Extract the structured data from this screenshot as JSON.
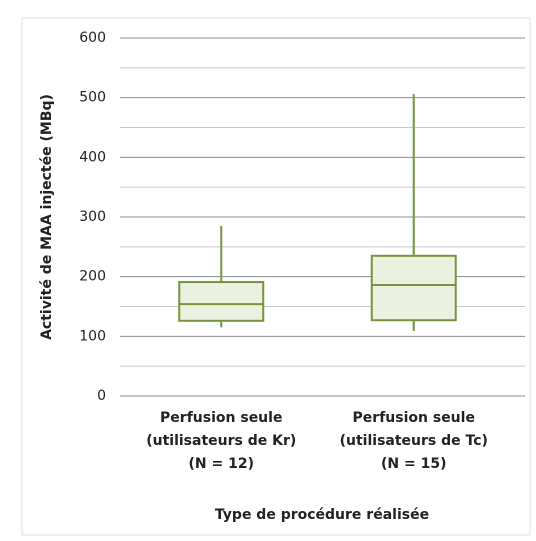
{
  "chart_data": {
    "type": "box",
    "y_label": "Activité de MAA injectée (MBq)",
    "x_label": "Type de procédure réalisée",
    "categories": [
      [
        "Perfusion seule",
        "(utilisateurs de Kr)",
        "(N = 12)"
      ],
      [
        "Perfusion seule",
        "(utilisateurs de Tc)",
        "(N = 15)"
      ]
    ],
    "boxes": [
      {
        "min": 115,
        "q1": 126,
        "median": 154,
        "q3": 191,
        "max": 285
      },
      {
        "min": 109,
        "q1": 127,
        "median": 186,
        "q3": 235,
        "max": 506
      }
    ],
    "color": "#77933c",
    "fill": "#ebf1de",
    "ylim": [
      0,
      600
    ],
    "yticks": [
      0,
      100,
      200,
      300,
      400,
      500,
      600
    ],
    "minor_yticks": [
      50,
      150,
      250,
      350,
      450,
      550
    ],
    "grid": true
  }
}
